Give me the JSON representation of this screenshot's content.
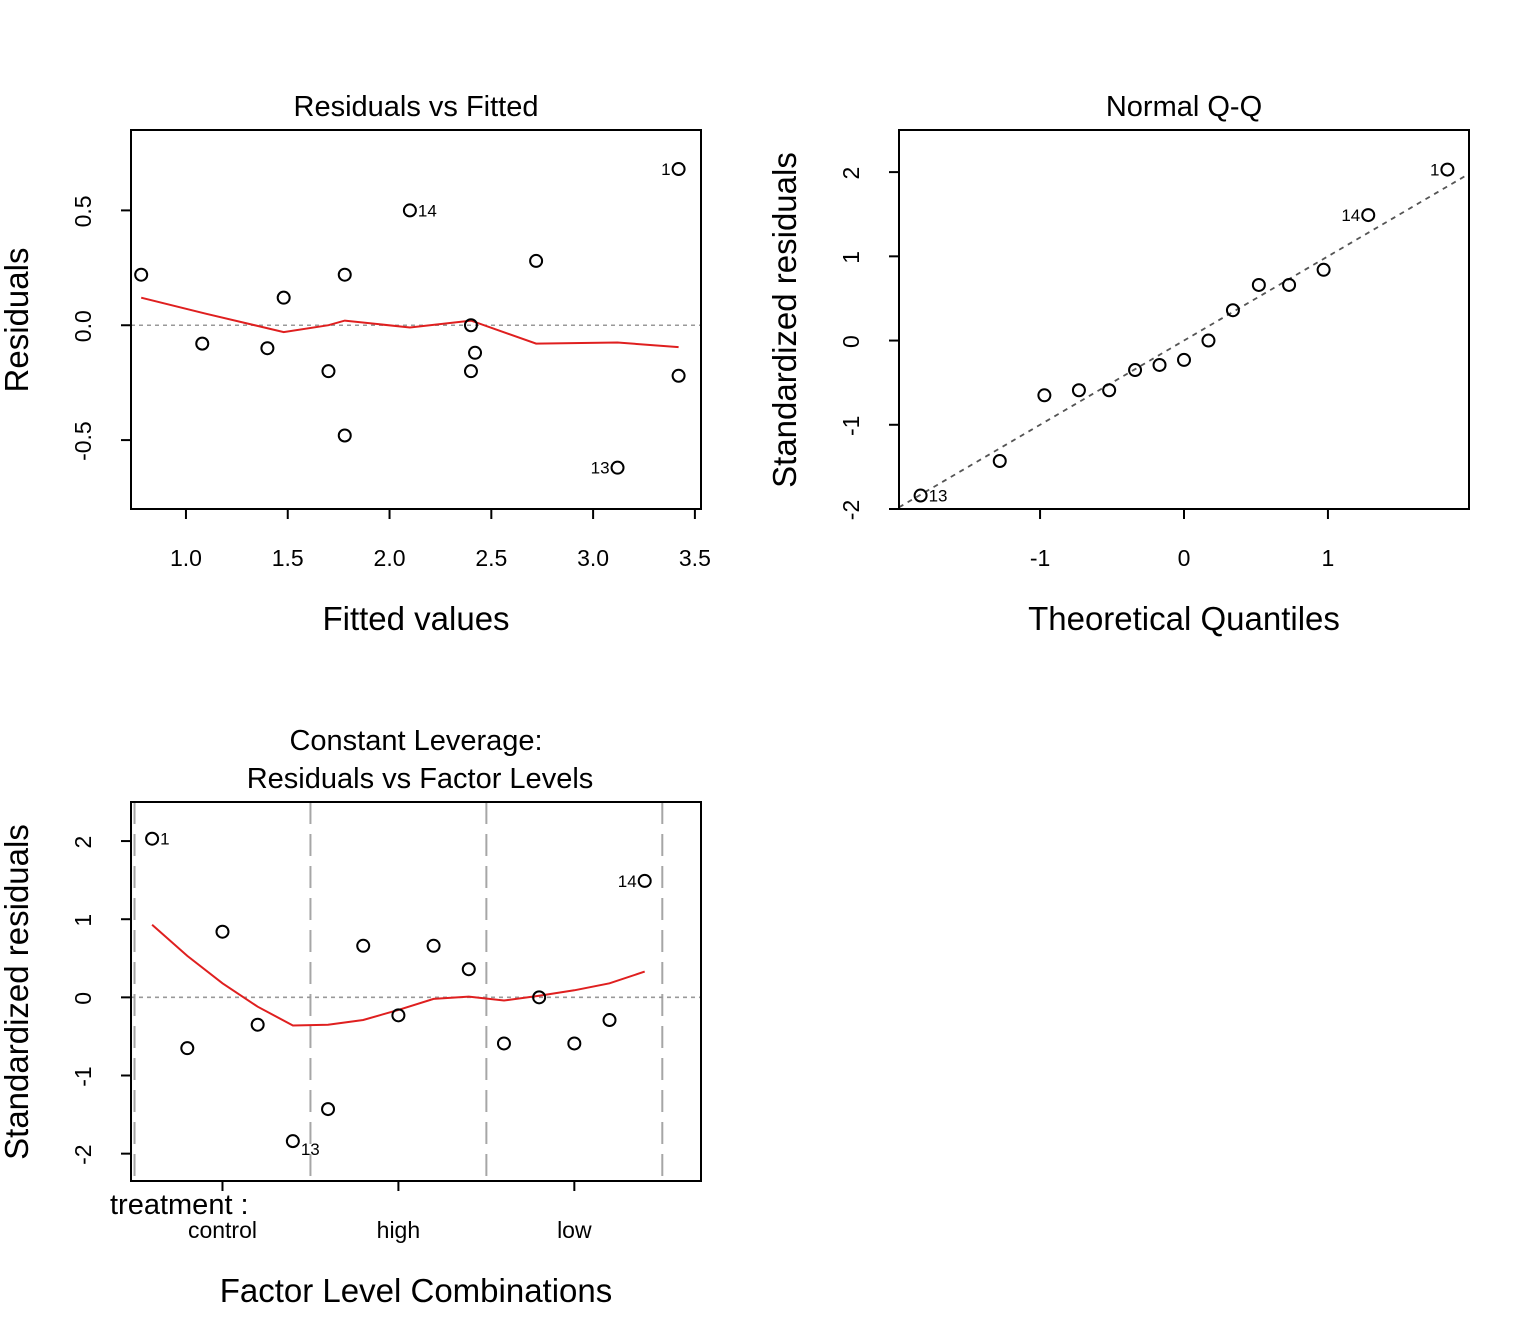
{
  "chart_data": [
    {
      "type": "scatter",
      "title": "Residuals vs Fitted",
      "xlabel": "Fitted values",
      "ylabel": "Residuals",
      "xlim": [
        0.73,
        3.53
      ],
      "ylim": [
        -0.8,
        0.85
      ],
      "xticks": [
        {
          "v": 1.0,
          "label": "1.0"
        },
        {
          "v": 1.5,
          "label": "1.5"
        },
        {
          "v": 2.0,
          "label": "2.0"
        },
        {
          "v": 2.5,
          "label": "2.5"
        },
        {
          "v": 3.0,
          "label": "3.0"
        },
        {
          "v": 3.5,
          "label": "3.5"
        }
      ],
      "yticks": [
        {
          "v": -0.5,
          "label": "-0.5"
        },
        {
          "v": 0.0,
          "label": "0.0"
        },
        {
          "v": 0.5,
          "label": "0.5"
        }
      ],
      "reference_line": 0,
      "points": [
        {
          "x": 0.78,
          "y": 0.22
        },
        {
          "x": 1.08,
          "y": -0.08
        },
        {
          "x": 1.4,
          "y": -0.1
        },
        {
          "x": 1.48,
          "y": 0.12
        },
        {
          "x": 1.7,
          "y": -0.2
        },
        {
          "x": 1.78,
          "y": 0.22
        },
        {
          "x": 1.78,
          "y": -0.48
        },
        {
          "x": 2.1,
          "y": 0.5,
          "label": "14",
          "label_side": "right"
        },
        {
          "x": 2.4,
          "y": 0.0
        },
        {
          "x": 2.4,
          "y": -0.2
        },
        {
          "x": 2.42,
          "y": -0.12
        },
        {
          "x": 2.72,
          "y": 0.28
        },
        {
          "x": 3.12,
          "y": -0.62,
          "label": "13",
          "label_side": "left"
        },
        {
          "x": 3.42,
          "y": 0.68,
          "label": "1",
          "label_side": "left"
        },
        {
          "x": 3.42,
          "y": -0.22
        }
      ],
      "smooth_line": [
        {
          "x": 0.78,
          "y": 0.12
        },
        {
          "x": 1.1,
          "y": 0.05
        },
        {
          "x": 1.48,
          "y": -0.03
        },
        {
          "x": 1.7,
          "y": 0.0
        },
        {
          "x": 1.78,
          "y": 0.02
        },
        {
          "x": 2.1,
          "y": -0.01
        },
        {
          "x": 2.4,
          "y": 0.02
        },
        {
          "x": 2.72,
          "y": -0.08
        },
        {
          "x": 3.12,
          "y": -0.075
        },
        {
          "x": 3.42,
          "y": -0.095
        }
      ]
    },
    {
      "type": "scatter",
      "title": "Normal Q-Q",
      "xlabel": "Theoretical Quantiles",
      "ylabel": "Standardized residuals",
      "xlim": [
        -1.98,
        1.98
      ],
      "ylim": [
        -2.0,
        2.5
      ],
      "xticks": [
        {
          "v": -1,
          "label": "-1"
        },
        {
          "v": 0,
          "label": "0"
        },
        {
          "v": 1,
          "label": "1"
        }
      ],
      "yticks": [
        {
          "v": -2,
          "label": "-2"
        },
        {
          "v": -1,
          "label": "-1"
        },
        {
          "v": 0,
          "label": "0"
        },
        {
          "v": 1,
          "label": "1"
        },
        {
          "v": 2,
          "label": "2"
        }
      ],
      "reference_line": {
        "slope": 1.0,
        "intercept": 0.0
      },
      "points": [
        {
          "x": -1.83,
          "y": -1.84,
          "label": "13",
          "label_side": "right"
        },
        {
          "x": -1.28,
          "y": -1.43
        },
        {
          "x": -0.97,
          "y": -0.65
        },
        {
          "x": -0.73,
          "y": -0.59
        },
        {
          "x": -0.52,
          "y": -0.59
        },
        {
          "x": -0.34,
          "y": -0.35
        },
        {
          "x": -0.17,
          "y": -0.29
        },
        {
          "x": 0.0,
          "y": -0.23
        },
        {
          "x": 0.17,
          "y": 0.0
        },
        {
          "x": 0.34,
          "y": 0.36
        },
        {
          "x": 0.52,
          "y": 0.66
        },
        {
          "x": 0.73,
          "y": 0.66
        },
        {
          "x": 0.97,
          "y": 0.84
        },
        {
          "x": 1.28,
          "y": 1.49,
          "label": "14",
          "label_side": "left"
        },
        {
          "x": 1.83,
          "y": 2.03,
          "label": "1",
          "label_side": "left"
        }
      ]
    },
    {
      "type": "scatter",
      "title": "Constant Leverage:",
      "subtitle": "Residuals vs Factor Levels",
      "xlabel": "Factor Level Combinations",
      "ylabel": "Standardized residuals",
      "xlim": [
        0.4,
        16.6
      ],
      "ylim": [
        -2.35,
        2.5
      ],
      "yticks": [
        {
          "v": -2,
          "label": "-2"
        },
        {
          "v": -1,
          "label": "-1"
        },
        {
          "v": 0,
          "label": "0"
        },
        {
          "v": 1,
          "label": "1"
        },
        {
          "v": 2,
          "label": "2"
        }
      ],
      "factor_name": "treatment :",
      "factor_levels": [
        {
          "x": 3,
          "label": "control"
        },
        {
          "x": 8,
          "label": "high"
        },
        {
          "x": 13,
          "label": "low"
        }
      ],
      "level_separators": [
        0.5,
        5.5,
        10.5,
        15.5
      ],
      "reference_line": 0,
      "points": [
        {
          "x": 1,
          "y": 2.03,
          "label": "1",
          "label_side": "right"
        },
        {
          "x": 2,
          "y": -0.65
        },
        {
          "x": 3,
          "y": 0.84
        },
        {
          "x": 4,
          "y": -0.35
        },
        {
          "x": 5,
          "y": -1.84,
          "label": "13",
          "label_side": "below-right"
        },
        {
          "x": 6,
          "y": -1.43
        },
        {
          "x": 7,
          "y": 0.66
        },
        {
          "x": 8,
          "y": -0.23
        },
        {
          "x": 9,
          "y": 0.66
        },
        {
          "x": 10,
          "y": 0.36
        },
        {
          "x": 11,
          "y": -0.59
        },
        {
          "x": 12,
          "y": 0.0
        },
        {
          "x": 13,
          "y": -0.59
        },
        {
          "x": 14,
          "y": -0.29
        },
        {
          "x": 15,
          "y": 1.49,
          "label": "14",
          "label_side": "left"
        }
      ],
      "smooth_line": [
        {
          "x": 1,
          "y": 0.93
        },
        {
          "x": 2,
          "y": 0.53
        },
        {
          "x": 3,
          "y": 0.18
        },
        {
          "x": 4,
          "y": -0.12
        },
        {
          "x": 5,
          "y": -0.36
        },
        {
          "x": 6,
          "y": -0.35
        },
        {
          "x": 7,
          "y": -0.29
        },
        {
          "x": 8,
          "y": -0.16
        },
        {
          "x": 9,
          "y": -0.02
        },
        {
          "x": 10,
          "y": 0.01
        },
        {
          "x": 11,
          "y": -0.04
        },
        {
          "x": 12,
          "y": 0.02
        },
        {
          "x": 13,
          "y": 0.09
        },
        {
          "x": 14,
          "y": 0.18
        },
        {
          "x": 15,
          "y": 0.33
        }
      ]
    }
  ],
  "colors": {
    "points": "#000000",
    "smooth": "#df1f1f",
    "reference": "#999999",
    "qq_line": "#555555",
    "separator": "#a6a6a6"
  }
}
